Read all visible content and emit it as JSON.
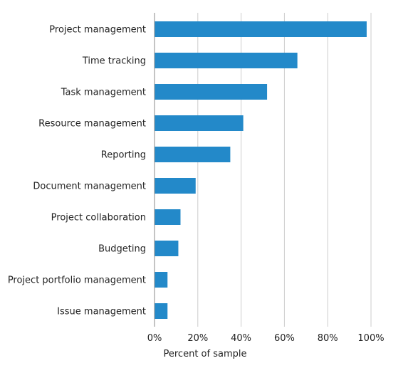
{
  "chart_data": {
    "type": "bar",
    "orientation": "horizontal",
    "categories": [
      "Project management",
      "Time tracking",
      "Task management",
      "Resource management",
      "Reporting",
      "Document management",
      "Project collaboration",
      "Budgeting",
      "Project portfolio management",
      "Issue management"
    ],
    "values": [
      98,
      66,
      52,
      41,
      35,
      19,
      12,
      11,
      6,
      6
    ],
    "xlim": [
      0,
      100
    ],
    "xticks": [
      "0%",
      "20%",
      "40%",
      "60%",
      "80%",
      "100%"
    ],
    "xlabel": "Percent of sample",
    "ylabel": "",
    "title": "",
    "grid": "vertical",
    "legend": "none",
    "bar_color": "#2389c9",
    "grid_color": "#cccccc"
  }
}
